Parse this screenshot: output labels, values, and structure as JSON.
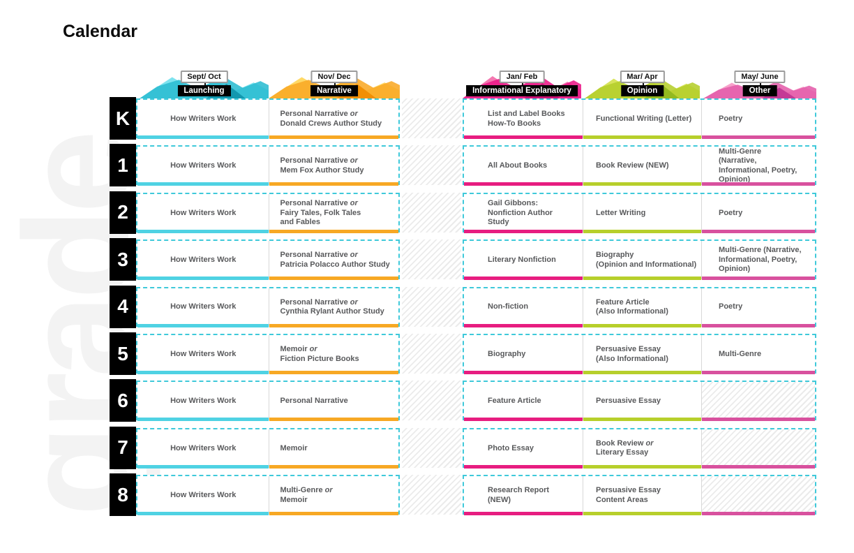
{
  "page": {
    "title": "Calendar",
    "watermark": "grade",
    "background": "#ffffff"
  },
  "calendar": {
    "border_color": "#3fc9da",
    "divider_color": "#d8d8d8",
    "grade_box": {
      "bg": "#000000",
      "text_color": "#ffffff"
    },
    "cell_text_color": "#58595b",
    "columns": [
      {
        "month": "Sept/ Oct",
        "category": "Launching",
        "peak_light": "#7ee3ef",
        "peak_main": "#2bbcd2",
        "peak_dark": "#0f93ab",
        "bar_color": "#4fd2e3"
      },
      {
        "month": "Nov/ Dec",
        "category": "Narrative",
        "peak_light": "#ffd966",
        "peak_main": "#f9a825",
        "peak_dark": "#f08c00",
        "bar_color": "#f7a824"
      },
      {
        "month": "Jan/ Feb",
        "category": "Informational Explanatory",
        "peak_light": "#f478b1",
        "peak_main": "#ea1888",
        "peak_dark": "#c70f72",
        "bar_color": "#e71d80"
      },
      {
        "month": "Mar/ Apr",
        "category": "Opinion",
        "peak_light": "#d7e45c",
        "peak_main": "#b5ce2b",
        "peak_dark": "#8fb61e",
        "bar_color": "#b7cf2b"
      },
      {
        "month": "May/ June",
        "category": "Other",
        "peak_light": "#f7a1ca",
        "peak_main": "#e45caa",
        "peak_dark": "#c03493",
        "bar_color": "#d8519e"
      }
    ],
    "rows": [
      {
        "grade": "K",
        "cells": [
          "How Writers Work",
          "Personal Narrative *or*\nDonald Crews Author Study",
          "List and Label Books\nHow-To Books",
          "Functional Writing (Letter)",
          "Poetry"
        ]
      },
      {
        "grade": "1",
        "cells": [
          "How Writers Work",
          "Personal Narrative *or*\nMem Fox Author Study",
          "All About Books",
          "Book Review (NEW)",
          "Multi-Genre\n(Narrative,\nInformational, Poetry,\nOpinion)"
        ]
      },
      {
        "grade": "2",
        "cells": [
          "How Writers Work",
          "Personal Narrative *or*\nFairy Tales, Folk Tales\nand Fables",
          "Gail Gibbons:\nNonfiction Author\nStudy",
          "Letter Writing",
          "Poetry"
        ]
      },
      {
        "grade": "3",
        "cells": [
          "How Writers Work",
          "Personal Narrative *or*\nPatricia Polacco Author Study",
          "Literary Nonfiction",
          "Biography\n(Opinion and Informational)",
          "Multi-Genre (Narrative,\nInformational, Poetry,\nOpinion)"
        ]
      },
      {
        "grade": "4",
        "cells": [
          "How Writers Work",
          "Personal Narrative *or*\nCynthia Rylant Author Study",
          "Non-fiction",
          "Feature Article\n(Also Informational)",
          "Poetry"
        ]
      },
      {
        "grade": "5",
        "cells": [
          "How Writers Work",
          "Memoir *or*\nFiction Picture Books",
          "Biography",
          "Persuasive Essay\n(Also Informational)",
          "Multi-Genre"
        ]
      },
      {
        "grade": "6",
        "cells": [
          "How Writers Work",
          "Personal Narrative",
          "Feature Article",
          "Persuasive Essay",
          null
        ]
      },
      {
        "grade": "7",
        "cells": [
          "How Writers Work",
          "Memoir",
          "Photo Essay",
          "Book Review *or*\nLiterary Essay",
          null
        ]
      },
      {
        "grade": "8",
        "cells": [
          "How Writers Work",
          "Multi-Genre *or*\nMemoir",
          "Research Report\n(NEW)",
          "Persuasive Essay\nContent Areas",
          null
        ]
      }
    ]
  }
}
